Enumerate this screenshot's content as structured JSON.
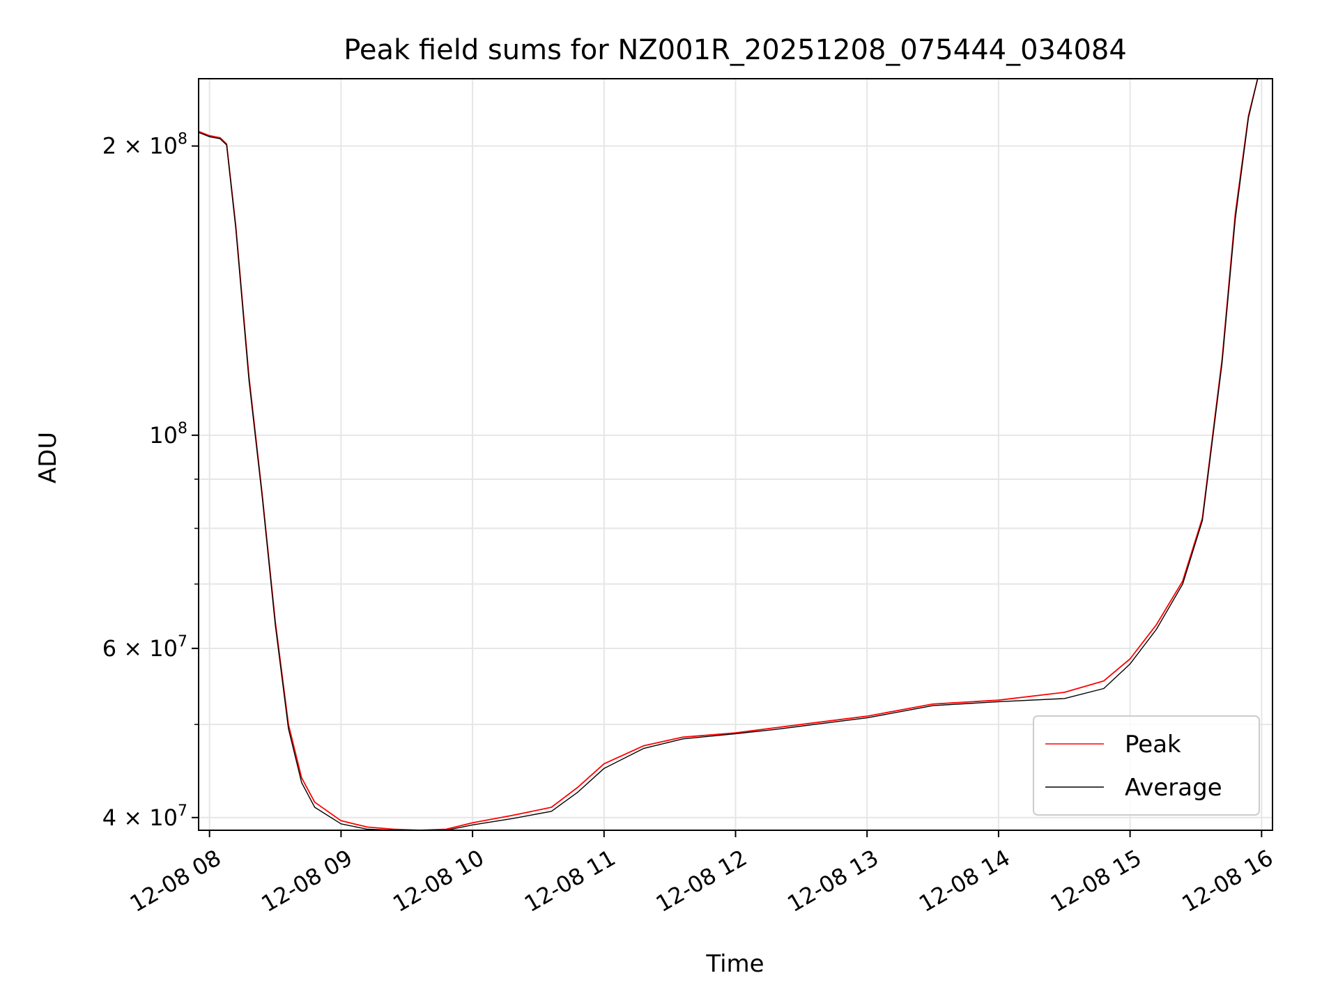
{
  "chart_data": {
    "type": "line",
    "title": "Peak field sums for NZ001R_20251208_075444_034084",
    "xlabel": "Time",
    "ylabel": "ADU",
    "y_scale": "log",
    "ylim": [
      38800000,
      235000000
    ],
    "x_unit": "hours",
    "xlim": [
      7.917,
      16.083
    ],
    "grid": true,
    "legend_position": "lower right",
    "x_ticks": [
      {
        "value": 8,
        "label": "12-08 08"
      },
      {
        "value": 9,
        "label": "12-08 09"
      },
      {
        "value": 10,
        "label": "12-08 10"
      },
      {
        "value": 11,
        "label": "12-08 11"
      },
      {
        "value": 12,
        "label": "12-08 12"
      },
      {
        "value": 13,
        "label": "12-08 13"
      },
      {
        "value": 14,
        "label": "12-08 14"
      },
      {
        "value": 15,
        "label": "12-08 15"
      },
      {
        "value": 16,
        "label": "12-08 16"
      }
    ],
    "y_ticks_major": [
      {
        "value": 40000000,
        "base": "4 × 10",
        "exp": "7"
      },
      {
        "value": 60000000,
        "base": "6 × 10",
        "exp": "7"
      },
      {
        "value": 100000000,
        "base": "10",
        "exp": "8"
      },
      {
        "value": 200000000,
        "base": "2 × 10",
        "exp": "8"
      }
    ],
    "y_ticks_minor": [
      50000000,
      70000000,
      80000000,
      90000000
    ],
    "series": [
      {
        "name": "Peak",
        "color": "#ff0000",
        "x": [
          7.92,
          8.0,
          8.08,
          8.13,
          8.2,
          8.3,
          8.4,
          8.5,
          8.6,
          8.7,
          8.8,
          9.0,
          9.2,
          9.4,
          9.6,
          9.8,
          10.0,
          10.3,
          10.6,
          10.8,
          11.0,
          11.3,
          11.6,
          12.0,
          12.3,
          12.6,
          13.0,
          13.5,
          14.0,
          14.5,
          14.8,
          15.0,
          15.2,
          15.4,
          15.55,
          15.7,
          15.8,
          15.9,
          15.97
        ],
        "y": [
          207000000,
          205000000,
          204000000,
          201000000,
          165000000,
          115000000,
          87000000,
          64000000,
          50000000,
          44000000,
          41500000,
          39700000,
          39100000,
          38900000,
          38800000,
          38900000,
          39500000,
          40200000,
          41000000,
          43000000,
          45500000,
          47500000,
          48500000,
          49000000,
          49600000,
          50200000,
          51000000,
          52500000,
          53000000,
          54000000,
          55500000,
          58500000,
          63500000,
          70500000,
          82000000,
          120000000,
          170000000,
          215000000,
          235000000
        ]
      },
      {
        "name": "Average",
        "color": "#000000",
        "x": [
          7.92,
          8.0,
          8.08,
          8.13,
          8.2,
          8.3,
          8.4,
          8.5,
          8.6,
          8.7,
          8.8,
          9.0,
          9.2,
          9.4,
          9.6,
          9.8,
          10.0,
          10.3,
          10.6,
          10.8,
          11.0,
          11.3,
          11.6,
          12.0,
          12.3,
          12.6,
          13.0,
          13.5,
          14.0,
          14.5,
          14.8,
          15.0,
          15.2,
          15.4,
          15.55,
          15.7,
          15.8,
          15.9,
          15.97
        ],
        "y": [
          206500000,
          204500000,
          203500000,
          200500000,
          164000000,
          114000000,
          86500000,
          63500000,
          49500000,
          43500000,
          41000000,
          39400000,
          38900000,
          38800000,
          38700000,
          38800000,
          39300000,
          39900000,
          40600000,
          42500000,
          45000000,
          47200000,
          48300000,
          48900000,
          49400000,
          50000000,
          50800000,
          52300000,
          52800000,
          53200000,
          54500000,
          57800000,
          62800000,
          70000000,
          81500000,
          119000000,
          168000000,
          214000000,
          235000000
        ]
      }
    ]
  }
}
